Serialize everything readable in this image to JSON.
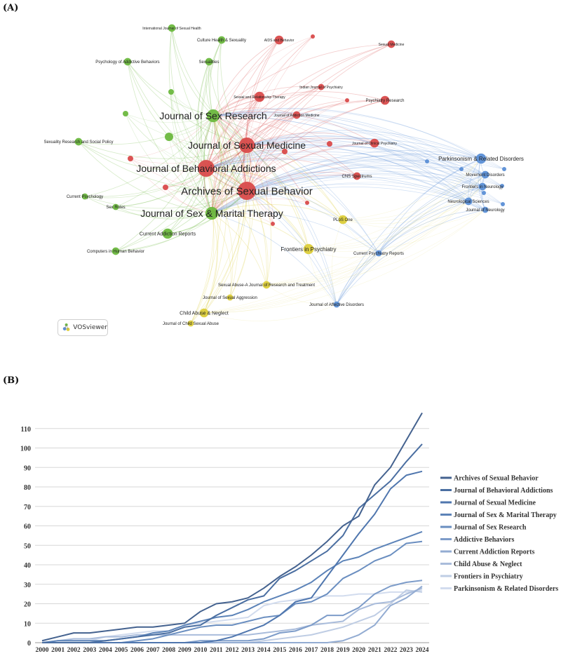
{
  "panels": {
    "a_label": "(A)",
    "b_label": "(B)"
  },
  "network": {
    "software_label": "VOSviewer",
    "colors": {
      "red": "#d94b4b",
      "green": "#6bb83e",
      "yellow": "#dccd3a",
      "blue": "#5b8fd6"
    },
    "nodes": [
      {
        "id": "asb",
        "label": "Archives of Sexual Behavior",
        "cluster": "red",
        "weight": 11
      },
      {
        "id": "jba",
        "label": "Journal of Behavioral Addictions",
        "cluster": "red",
        "weight": 10
      },
      {
        "id": "jsm",
        "label": "Journal of Sexual Medicine",
        "cluster": "red",
        "weight": 9
      },
      {
        "id": "jsr",
        "label": "Journal of Sex Research",
        "cluster": "green",
        "weight": 7
      },
      {
        "id": "jsmt",
        "label": "Journal of Sex & Marital Therapy",
        "cluster": "green",
        "weight": 7
      },
      {
        "id": "aids",
        "label": "AIDS and Behavior",
        "cluster": "red",
        "weight": 4
      },
      {
        "id": "sm",
        "label": "Sexual Medicine",
        "cluster": "red",
        "weight": 3
      },
      {
        "id": "ijp",
        "label": "Indian Journal of Psychiatry",
        "cluster": "red",
        "weight": 2
      },
      {
        "id": "pr",
        "label": "Psychiatry Research",
        "cluster": "red",
        "weight": 4
      },
      {
        "id": "srt",
        "label": "Sexual and Relationship Therapy",
        "cluster": "red",
        "weight": 5
      },
      {
        "id": "jam",
        "label": "Journal of Addiction Medicine",
        "cluster": "red",
        "weight": 3
      },
      {
        "id": "jcp",
        "label": "Journal of Clinical Psychiatry",
        "cluster": "red",
        "weight": 4
      },
      {
        "id": "cns",
        "label": "CNS Spectrums",
        "cluster": "red",
        "weight": 3
      },
      {
        "id": "ijsh",
        "label": "International Journal of Sexual Health",
        "cluster": "green",
        "weight": 3
      },
      {
        "id": "chs",
        "label": "Culture Health & Sexuality",
        "cluster": "green",
        "weight": 3
      },
      {
        "id": "sex",
        "label": "Sexualities",
        "cluster": "green",
        "weight": 3
      },
      {
        "id": "pab",
        "label": "Psychology of Addictive Behaviors",
        "cluster": "green",
        "weight": 3
      },
      {
        "id": "srsp",
        "label": "Sexuality Research and Social Policy",
        "cluster": "green",
        "weight": 3
      },
      {
        "id": "cp",
        "label": "Current Psychology",
        "cluster": "green",
        "weight": 2
      },
      {
        "id": "sr",
        "label": "Sex Roles",
        "cluster": "green",
        "weight": 2
      },
      {
        "id": "car",
        "label": "Current Addiction Reports",
        "cluster": "green",
        "weight": 5
      },
      {
        "id": "chb",
        "label": "Computers in Human Behavior",
        "cluster": "green",
        "weight": 3
      },
      {
        "id": "plos",
        "label": "PLoS One",
        "cluster": "yellow",
        "weight": 4
      },
      {
        "id": "fip",
        "label": "Frontiers in Psychiatry",
        "cluster": "yellow",
        "weight": 5
      },
      {
        "id": "sajrt",
        "label": "Sexual Abuse-A Journal of Research and Treatment",
        "cluster": "yellow",
        "weight": 3
      },
      {
        "id": "jsa",
        "label": "Journal of Sexual Aggression",
        "cluster": "yellow",
        "weight": 2
      },
      {
        "id": "can",
        "label": "Child Abuse & Neglect",
        "cluster": "yellow",
        "weight": 4
      },
      {
        "id": "jcsa",
        "label": "Journal of Child Sexual Abuse",
        "cluster": "yellow",
        "weight": 2
      },
      {
        "id": "cpr",
        "label": "Current Psychiatry Reports",
        "cluster": "blue",
        "weight": 2
      },
      {
        "id": "jad",
        "label": "Journal of Affective Disorders",
        "cluster": "blue",
        "weight": 2
      },
      {
        "id": "prd",
        "label": "Parkinsonism & Related Disorders",
        "cluster": "blue",
        "weight": 5
      },
      {
        "id": "md",
        "label": "Movement Disorders",
        "cluster": "blue",
        "weight": 3
      },
      {
        "id": "fin",
        "label": "Frontiers in Neurology",
        "cluster": "blue",
        "weight": 3
      },
      {
        "id": "ns",
        "label": "Neurological Sciences",
        "cluster": "blue",
        "weight": 3
      },
      {
        "id": "jon",
        "label": "Journal of Neurology",
        "cluster": "blue",
        "weight": 2
      }
    ]
  },
  "chart_data": {
    "type": "line",
    "title": "",
    "xlabel": "",
    "ylabel": "",
    "ylim": [
      0,
      120
    ],
    "yticks": [
      0,
      10,
      20,
      30,
      40,
      50,
      60,
      70,
      80,
      90,
      100,
      110
    ],
    "grid": true,
    "legend_position": "right",
    "categories": [
      "2000",
      "2001",
      "2002",
      "2003",
      "2004",
      "2005",
      "2006",
      "2007",
      "2008",
      "2009",
      "2010",
      "2011",
      "2012",
      "2013",
      "2014",
      "2015",
      "2016",
      "2017",
      "2018",
      "2019",
      "2020",
      "2021",
      "2022",
      "2023",
      "2024"
    ],
    "series": [
      {
        "name": "Archives of Sexual Behavior",
        "color": "#44628f",
        "values": [
          1,
          3,
          5,
          5,
          6,
          7,
          8,
          8,
          9,
          10,
          16,
          20,
          21,
          23,
          28,
          34,
          39,
          45,
          52,
          60,
          65,
          81,
          90,
          104,
          118
        ]
      },
      {
        "name": "Journal of Behavioral Addictions",
        "color": "#4a6ea1",
        "values": [
          0,
          0,
          0,
          0,
          1,
          2,
          3,
          4,
          5,
          8,
          9,
          14,
          18,
          22,
          24,
          33,
          37,
          42,
          47,
          55,
          69,
          76,
          83,
          93,
          102
        ]
      },
      {
        "name": "Journal of Sexual Medicine",
        "color": "#4f76ae",
        "values": [
          0,
          0,
          0,
          0,
          0,
          0,
          0,
          0,
          0,
          0,
          0,
          1,
          3,
          6,
          9,
          14,
          21,
          23,
          34,
          45,
          56,
          66,
          79,
          86,
          88
        ]
      },
      {
        "name": "Journal of Sex & Marital Therapy",
        "color": "#5c83b8",
        "values": [
          0,
          1,
          1,
          1,
          1,
          2,
          3,
          5,
          6,
          9,
          11,
          13,
          14,
          17,
          21,
          24,
          27,
          31,
          37,
          42,
          44,
          48,
          51,
          54,
          57
        ]
      },
      {
        "name": "Journal of Sex Research",
        "color": "#6a8ec0",
        "values": [
          0,
          0,
          0,
          0,
          0,
          0,
          1,
          2,
          4,
          6,
          8,
          9,
          9,
          11,
          13,
          14,
          20,
          21,
          25,
          33,
          37,
          42,
          45,
          51,
          52
        ]
      },
      {
        "name": "Addictive Behaviors",
        "color": "#7d9cc9",
        "values": [
          0,
          0,
          0,
          0,
          0,
          0,
          0,
          0,
          0,
          0,
          1,
          1,
          1,
          1,
          2,
          5,
          6,
          9,
          14,
          14,
          18,
          25,
          29,
          31,
          32
        ]
      },
      {
        "name": "Current Addiction Reports",
        "color": "#93acd2",
        "values": [
          0,
          0,
          0,
          0,
          0,
          0,
          0,
          0,
          0,
          0,
          0,
          0,
          0,
          0,
          0,
          0,
          0,
          0,
          0,
          1,
          4,
          9,
          19,
          23,
          29
        ]
      },
      {
        "name": "Child Abuse & Neglect",
        "color": "#a9bcdb",
        "values": [
          0,
          1,
          2,
          2,
          3,
          3,
          4,
          4,
          4,
          4,
          4,
          4,
          4,
          4,
          5,
          6,
          7,
          9,
          10,
          11,
          17,
          20,
          21,
          25,
          28
        ]
      },
      {
        "name": "Frontiers in Psychiatry",
        "color": "#bfcde4",
        "values": [
          0,
          0,
          0,
          0,
          0,
          0,
          0,
          0,
          0,
          0,
          0,
          0,
          0,
          0,
          1,
          2,
          3,
          4,
          6,
          8,
          11,
          14,
          20,
          27,
          26
        ]
      },
      {
        "name": "Parkinsonism & Related Disorders",
        "color": "#d2dcee",
        "values": [
          0,
          1,
          1,
          1,
          3,
          4,
          5,
          6,
          6,
          9,
          10,
          11,
          12,
          13,
          19,
          21,
          22,
          23,
          24,
          24,
          25,
          25,
          26,
          26,
          27
        ]
      }
    ]
  }
}
